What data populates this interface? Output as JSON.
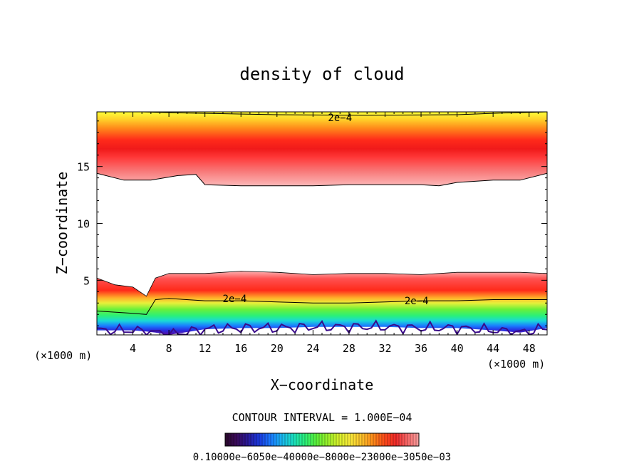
{
  "chart_data": {
    "type": "heatmap",
    "title": "density of cloud",
    "xlabel": "X−coordinate",
    "ylabel": "Z−coordinate",
    "x_unit_left": "(×1000 m)",
    "x_unit_right": "(×1000 m)",
    "xlim": [
      0,
      50
    ],
    "ylim": [
      0.2,
      19.8
    ],
    "x_ticks": [
      4,
      8,
      12,
      16,
      20,
      24,
      28,
      32,
      36,
      40,
      44,
      48
    ],
    "y_ticks": [
      5,
      10,
      15
    ],
    "contour_interval_text": "CONTOUR INTERVAL = 1.000E−04",
    "contour_labels": [
      {
        "text": "2e−4",
        "x": 27,
        "y": 19.3
      },
      {
        "text": "2e−4",
        "x": 15.3,
        "y": 3.4
      },
      {
        "text": "2e−4",
        "x": 35.5,
        "y": 3.2
      }
    ],
    "upper_cloud_layer": {
      "x": [
        0,
        3,
        6,
        9,
        11,
        12,
        16,
        20,
        24,
        28,
        32,
        36,
        38,
        40,
        44,
        47,
        50
      ],
      "base": [
        14.4,
        13.8,
        13.8,
        14.2,
        14.3,
        13.4,
        13.3,
        13.3,
        13.3,
        13.4,
        13.4,
        13.4,
        13.3,
        13.6,
        13.8,
        13.8,
        14.4
      ],
      "top": [
        19.8,
        19.8,
        19.8,
        19.8,
        19.8,
        19.8,
        19.8,
        19.8,
        19.8,
        19.8,
        19.8,
        19.8,
        19.8,
        19.8,
        19.8,
        19.8,
        19.8
      ],
      "core_z": [
        16.2,
        15.9,
        15.9,
        16.0,
        16.0,
        15.7,
        15.6,
        15.6,
        15.6,
        15.6,
        15.6,
        15.6,
        15.6,
        15.7,
        15.9,
        16.0,
        16.3
      ]
    },
    "lower_cloud_layer": {
      "x": [
        0,
        2,
        4,
        5.5,
        6.5,
        8,
        12,
        16,
        20,
        24,
        28,
        32,
        36,
        40,
        44,
        47,
        50
      ],
      "top": [
        5.2,
        4.6,
        4.4,
        3.6,
        5.2,
        5.6,
        5.6,
        5.8,
        5.7,
        5.5,
        5.6,
        5.6,
        5.5,
        5.7,
        5.7,
        5.7,
        5.6
      ],
      "contour_2e4": [
        2.3,
        2.2,
        2.1,
        2.0,
        3.3,
        3.4,
        3.2,
        3.2,
        3.1,
        3.0,
        3.0,
        3.1,
        3.2,
        3.2,
        3.3,
        3.3,
        3.3
      ],
      "base": [
        0.6,
        0.6,
        0.6,
        0.5,
        0.4,
        0.2,
        0.7,
        0.8,
        0.8,
        0.9,
        0.9,
        0.9,
        0.8,
        0.8,
        0.6,
        0.4,
        0.8
      ]
    },
    "colorbar": {
      "label_text": "0.10000e−6050e−40000e−8000e−23000e−3050e−03",
      "colors": [
        "#2a0a2a",
        "#3a0a5a",
        "#2a1a9a",
        "#1a3adf",
        "#1a7aff",
        "#1ab8ef",
        "#1adfbf",
        "#2af07a",
        "#5af03a",
        "#9af02a",
        "#d8f02a",
        "#f8e83a",
        "#ffc02a",
        "#ff8a1a",
        "#ff4a1a",
        "#f02a2a",
        "#f86a6a",
        "#fca0a0"
      ]
    }
  }
}
